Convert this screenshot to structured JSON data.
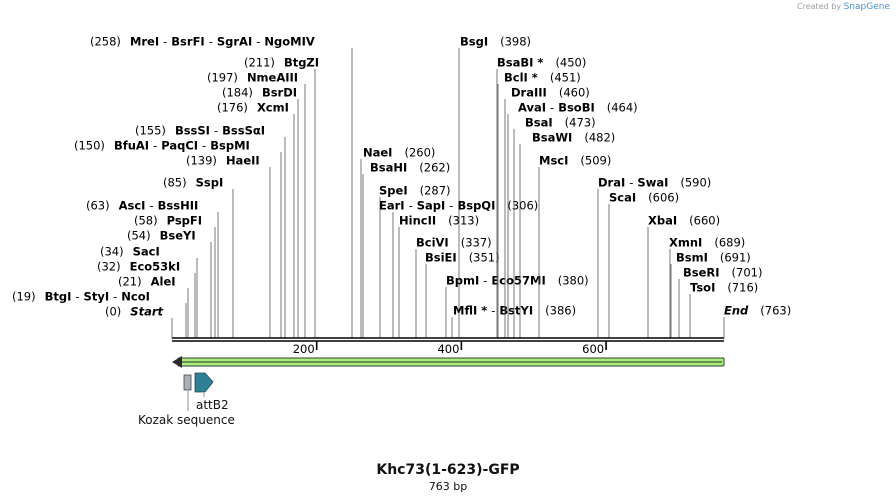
{
  "credit": {
    "prefix": "Created by",
    "brand": "SnapGene"
  },
  "map": {
    "title": "Khc73(1-623)-GFP",
    "length_label": "763 bp",
    "length": 763
  },
  "ruler": [
    {
      "bp": 200,
      "label": "200"
    },
    {
      "bp": 400,
      "label": "400"
    },
    {
      "bp": 600,
      "label": "600"
    }
  ],
  "sites": [
    {
      "id": "mrei",
      "pos": "(258)",
      "posLeft": true,
      "bp": 258,
      "parts": [
        "MreI",
        "BsrFI",
        "SgrAI",
        "NgoMIV"
      ]
    },
    {
      "id": "btgzi",
      "pos": "(211)",
      "posLeft": true,
      "bp": 211,
      "parts": [
        "BtgZI"
      ]
    },
    {
      "id": "nmeaiii",
      "pos": "(197)",
      "posLeft": true,
      "bp": 197,
      "parts": [
        "NmeAIII"
      ]
    },
    {
      "id": "bsrdi",
      "pos": "(184)",
      "posLeft": true,
      "bp": 184,
      "parts": [
        "BsrDI"
      ]
    },
    {
      "id": "xcmi",
      "pos": "(176)",
      "posLeft": true,
      "bp": 176,
      "parts": [
        "XcmI"
      ]
    },
    {
      "id": "bsssi",
      "pos": "(155)",
      "posLeft": true,
      "bp": 155,
      "parts": [
        "BssSI",
        "BssSαI"
      ]
    },
    {
      "id": "bfuai",
      "pos": "(150)",
      "posLeft": true,
      "bp": 150,
      "parts": [
        "BfuAI",
        "PaqCI",
        "BspMI"
      ]
    },
    {
      "id": "haeii",
      "pos": "(139)",
      "posLeft": true,
      "bp": 139,
      "parts": [
        "HaeII"
      ]
    },
    {
      "id": "sspi",
      "pos": "(85)",
      "posLeft": true,
      "bp": 85,
      "parts": [
        "SspI"
      ]
    },
    {
      "id": "asci",
      "pos": "(63)",
      "posLeft": true,
      "bp": 63,
      "parts": [
        "AscI",
        "BssHII"
      ]
    },
    {
      "id": "pspfi",
      "pos": "(58)",
      "posLeft": true,
      "bp": 58,
      "parts": [
        "PspFI"
      ]
    },
    {
      "id": "bseyi",
      "pos": "(54)",
      "posLeft": true,
      "bp": 54,
      "parts": [
        "BseYI"
      ]
    },
    {
      "id": "saci",
      "pos": "(34)",
      "posLeft": true,
      "bp": 34,
      "parts": [
        "SacI"
      ]
    },
    {
      "id": "eco53ki",
      "pos": "(32)",
      "posLeft": true,
      "bp": 32,
      "parts": [
        "Eco53kI"
      ]
    },
    {
      "id": "alei",
      "pos": "(21)",
      "posLeft": true,
      "bp": 21,
      "parts": [
        "AleI"
      ]
    },
    {
      "id": "btgi",
      "pos": "(19)",
      "posLeft": true,
      "bp": 19,
      "parts": [
        "BtgI",
        "StyI",
        "NcoI"
      ]
    },
    {
      "id": "start",
      "pos": "(0)",
      "posLeft": true,
      "bp": 0,
      "parts": [
        "Start"
      ],
      "italic": true
    },
    {
      "id": "bsgi",
      "pos": "(398)",
      "posLeft": false,
      "bp": 398,
      "parts": [
        "BsgI"
      ]
    },
    {
      "id": "naei",
      "pos": "(260)",
      "posLeft": false,
      "bp": 260,
      "parts": [
        "NaeI"
      ]
    },
    {
      "id": "bsahi",
      "pos": "(262)",
      "posLeft": false,
      "bp": 262,
      "parts": [
        "BsaHI"
      ]
    },
    {
      "id": "spei",
      "pos": "(287)",
      "posLeft": false,
      "bp": 287,
      "parts": [
        "SpeI"
      ]
    },
    {
      "id": "eari",
      "pos": "(306)",
      "posLeft": false,
      "bp": 306,
      "parts": [
        "EarI",
        "SapI",
        "BspQI"
      ]
    },
    {
      "id": "hincii",
      "pos": "(313)",
      "posLeft": false,
      "bp": 313,
      "parts": [
        "HincII"
      ]
    },
    {
      "id": "bcivi",
      "pos": "(337)",
      "posLeft": false,
      "bp": 337,
      "parts": [
        "BciVI"
      ]
    },
    {
      "id": "bsiei",
      "pos": "(351)",
      "posLeft": false,
      "bp": 351,
      "parts": [
        "BsiEI"
      ]
    },
    {
      "id": "bpmi",
      "pos": "(380)",
      "posLeft": false,
      "bp": 380,
      "parts": [
        "BpmI",
        "Eco57MI"
      ]
    },
    {
      "id": "mfli",
      "pos": "(386)",
      "posLeft": false,
      "bp": 386,
      "parts": [
        "MflI *",
        "BstYI"
      ]
    },
    {
      "id": "bsabi",
      "pos": "(450)",
      "posLeft": false,
      "bp": 450,
      "parts": [
        "BsaBI *"
      ]
    },
    {
      "id": "bcli",
      "pos": "(451)",
      "posLeft": false,
      "bp": 451,
      "parts": [
        "BclI *"
      ]
    },
    {
      "id": "draiii",
      "pos": "(460)",
      "posLeft": false,
      "bp": 460,
      "parts": [
        "DraIII"
      ]
    },
    {
      "id": "avai",
      "pos": "(464)",
      "posLeft": false,
      "bp": 464,
      "parts": [
        "AvaI",
        "BsoBI"
      ]
    },
    {
      "id": "bsai",
      "pos": "(473)",
      "posLeft": false,
      "bp": 473,
      "parts": [
        "BsaI"
      ]
    },
    {
      "id": "bsawi",
      "pos": "(482)",
      "posLeft": false,
      "bp": 482,
      "parts": [
        "BsaWI"
      ]
    },
    {
      "id": "msci",
      "pos": "(509)",
      "posLeft": false,
      "bp": 509,
      "parts": [
        "MscI"
      ]
    },
    {
      "id": "drai",
      "pos": "(590)",
      "posLeft": false,
      "bp": 590,
      "parts": [
        "DraI",
        "SwaI"
      ]
    },
    {
      "id": "scai",
      "pos": "(606)",
      "posLeft": false,
      "bp": 606,
      "parts": [
        "ScaI"
      ]
    },
    {
      "id": "xbai",
      "pos": "(660)",
      "posLeft": false,
      "bp": 660,
      "parts": [
        "XbaI"
      ]
    },
    {
      "id": "xmni",
      "pos": "(689)",
      "posLeft": false,
      "bp": 689,
      "parts": [
        "XmnI"
      ]
    },
    {
      "id": "bsmi",
      "pos": "(691)",
      "posLeft": false,
      "bp": 691,
      "parts": [
        "BsmI"
      ]
    },
    {
      "id": "bseri",
      "pos": "(701)",
      "posLeft": false,
      "bp": 701,
      "parts": [
        "BseRI"
      ]
    },
    {
      "id": "tsoi",
      "pos": "(716)",
      "posLeft": false,
      "bp": 716,
      "parts": [
        "TsoI"
      ]
    },
    {
      "id": "end",
      "pos": "(763)",
      "posLeft": false,
      "bp": 763,
      "parts": [
        "End"
      ],
      "italic": true
    }
  ],
  "features": [
    {
      "id": "kozak",
      "name": "Kozak sequence",
      "color": "#a9b1b8"
    },
    {
      "id": "attb2",
      "name": "attB2",
      "color": "#2f7f95"
    }
  ],
  "colors": {
    "orf": "#3a3a3a",
    "orf_fill": "#a6f07a",
    "line": "#555555"
  }
}
